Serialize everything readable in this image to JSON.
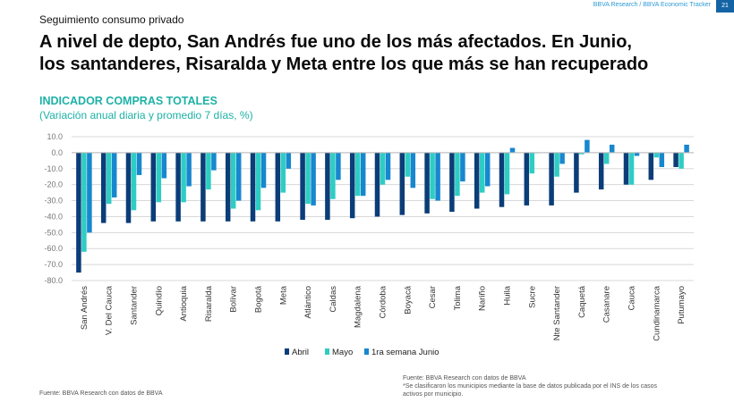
{
  "header": {
    "brand": "BBVA Research / BBVA Economic Tracker",
    "page_number": "21",
    "section": "Seguimiento consumo privado",
    "headline_line1": "A nivel de depto, San Andrés fue uno de los más afectados. En Junio,",
    "headline_line2": "los santanderes, Risaralda y Meta entre los que más se han recuperado"
  },
  "chart_title": "INDICADOR COMPRAS TOTALES",
  "chart_subtitle": "(Variación anual diaria y promedio 7 días, %)",
  "chart_data": {
    "type": "bar",
    "categories": [
      "San Andrés",
      "V. Del Cauca",
      "Santander",
      "Quindío",
      "Antioquia",
      "Risaralda",
      "Bolívar",
      "Bogotá",
      "Meta",
      "Atlántico",
      "Caldas",
      "Magdalena",
      "Córdoba",
      "Boyacá",
      "Cesar",
      "Tolima",
      "Nariño",
      "Huila",
      "Sucre",
      "Nte Santander",
      "Caquetá",
      "Casanare",
      "Cauca",
      "Cundinamarca",
      "Putumayo"
    ],
    "series": [
      {
        "name": "Abril",
        "color": "#0b3d78",
        "values": [
          -75,
          -44,
          -44,
          -43,
          -43,
          -43,
          -43,
          -43,
          -43,
          -42,
          -42,
          -41,
          -40,
          -39,
          -38,
          -37,
          -35,
          -34,
          -33,
          -33,
          -25,
          -23,
          -20,
          -17,
          -9
        ]
      },
      {
        "name": "Mayo",
        "color": "#2ecdc4",
        "values": [
          -62,
          -32,
          -36,
          -31,
          -31,
          -23,
          -35,
          -36,
          -25,
          -32,
          -29,
          -27,
          -20,
          -15,
          -29,
          -27,
          -25,
          -26,
          -13,
          -15,
          -1,
          -7,
          -20,
          -3,
          -10
        ]
      },
      {
        "name": "1ra semana Junio",
        "color": "#1787cf",
        "values": [
          -50,
          -28,
          -14,
          -16,
          -21,
          -11,
          -30,
          -22,
          -10,
          -33,
          -17,
          -27,
          -17,
          -22,
          -30,
          -18,
          -21,
          3,
          0,
          -7,
          8,
          5,
          -2,
          -9,
          5
        ]
      }
    ],
    "yticks": [
      "10.0",
      "0.0",
      "-10.0",
      "-20.0",
      "-30.0",
      "-40.0",
      "-50.0",
      "-60.0",
      "-70.0",
      "-80.0"
    ],
    "ylim": [
      -80,
      10
    ],
    "xlabel": "",
    "ylabel": ""
  },
  "footer": {
    "source_left": "Fuente: BBVA Research con datos de BBVA",
    "source_right_1": "Fuente: BBVA Research con datos de BBVA",
    "source_right_2": "*Se clasificaron los municipios mediante la base de datos publicada por el INS de los casos",
    "source_right_3": "activos por municipio."
  }
}
